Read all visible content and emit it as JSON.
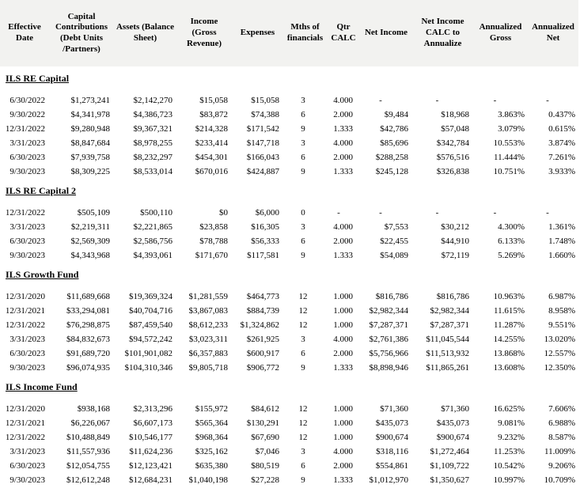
{
  "report": {
    "header_bg": "#f2f2f0",
    "text_color": "#000000",
    "columns": [
      "Effective Date",
      "Capital Contributions (Debt Units /Partners)",
      "Assets (Balance Sheet)",
      "Income (Gross Revenue)",
      "Expenses",
      "Mths of financials",
      "Qtr CALC",
      "Net Income",
      "Net Income CALC to Annualize",
      "Annualized Gross",
      "Annualized Net"
    ],
    "sections": [
      {
        "title": "ILS RE Capital",
        "rows": [
          [
            "6/30/2022",
            "$1,273,241",
            "$2,142,270",
            "$15,058",
            "$15,058",
            "3",
            "4.000",
            "-",
            "-",
            "-",
            "-"
          ],
          [
            "9/30/2022",
            "$4,341,978",
            "$4,386,723",
            "$83,872",
            "$74,388",
            "6",
            "2.000",
            "$9,484",
            "$18,968",
            "3.863%",
            "0.437%"
          ],
          [
            "12/31/2022",
            "$9,280,948",
            "$9,367,321",
            "$214,328",
            "$171,542",
            "9",
            "1.333",
            "$42,786",
            "$57,048",
            "3.079%",
            "0.615%"
          ],
          [
            "3/31/2023",
            "$8,847,684",
            "$8,978,255",
            "$233,414",
            "$147,718",
            "3",
            "4.000",
            "$85,696",
            "$342,784",
            "10.553%",
            "3.874%"
          ],
          [
            "6/30/2023",
            "$7,939,758",
            "$8,232,297",
            "$454,301",
            "$166,043",
            "6",
            "2.000",
            "$288,258",
            "$576,516",
            "11.444%",
            "7.261%"
          ],
          [
            "9/30/2023",
            "$8,309,225",
            "$8,533,014",
            "$670,016",
            "$424,887",
            "9",
            "1.333",
            "$245,128",
            "$326,838",
            "10.751%",
            "3.933%"
          ]
        ]
      },
      {
        "title": "ILS RE Capital 2",
        "rows": [
          [
            "12/31/2022",
            "$505,109",
            "$500,110",
            "$0",
            "$6,000",
            "0",
            "-",
            "-",
            "-",
            "-",
            "-"
          ],
          [
            "3/31/2023",
            "$2,219,311",
            "$2,221,865",
            "$23,858",
            "$16,305",
            "3",
            "4.000",
            "$7,553",
            "$30,212",
            "4.300%",
            "1.361%"
          ],
          [
            "6/30/2023",
            "$2,569,309",
            "$2,586,756",
            "$78,788",
            "$56,333",
            "6",
            "2.000",
            "$22,455",
            "$44,910",
            "6.133%",
            "1.748%"
          ],
          [
            "9/30/2023",
            "$4,343,968",
            "$4,393,061",
            "$171,670",
            "$117,581",
            "9",
            "1.333",
            "$54,089",
            "$72,119",
            "5.269%",
            "1.660%"
          ]
        ]
      },
      {
        "title": "ILS Growth Fund",
        "rows": [
          [
            "12/31/2020",
            "$11,689,668",
            "$19,369,324",
            "$1,281,559",
            "$464,773",
            "12",
            "1.000",
            "$816,786",
            "$816,786",
            "10.963%",
            "6.987%"
          ],
          [
            "12/31/2021",
            "$33,294,081",
            "$40,704,716",
            "$3,867,083",
            "$884,739",
            "12",
            "1.000",
            "$2,982,344",
            "$2,982,344",
            "11.615%",
            "8.958%"
          ],
          [
            "12/31/2022",
            "$76,298,875",
            "$87,459,540",
            "$8,612,233",
            "$1,324,862",
            "12",
            "1.000",
            "$7,287,371",
            "$7,287,371",
            "11.287%",
            "9.551%"
          ],
          [
            "3/31/2023",
            "$84,832,673",
            "$94,572,242",
            "$3,023,311",
            "$261,925",
            "3",
            "4.000",
            "$2,761,386",
            "$11,045,544",
            "14.255%",
            "13.020%"
          ],
          [
            "6/30/2023",
            "$91,689,720",
            "$101,901,082",
            "$6,357,883",
            "$600,917",
            "6",
            "2.000",
            "$5,756,966",
            "$11,513,932",
            "13.868%",
            "12.557%"
          ],
          [
            "9/30/2023",
            "$96,074,935",
            "$104,310,346",
            "$9,805,718",
            "$906,772",
            "9",
            "1.333",
            "$8,898,946",
            "$11,865,261",
            "13.608%",
            "12.350%"
          ]
        ]
      },
      {
        "title": "ILS Income Fund",
        "rows": [
          [
            "12/31/2020",
            "$938,168",
            "$2,313,296",
            "$155,972",
            "$84,612",
            "12",
            "1.000",
            "$71,360",
            "$71,360",
            "16.625%",
            "7.606%"
          ],
          [
            "12/31/2021",
            "$6,226,067",
            "$6,607,173",
            "$565,364",
            "$130,291",
            "12",
            "1.000",
            "$435,073",
            "$435,073",
            "9.081%",
            "6.988%"
          ],
          [
            "12/31/2022",
            "$10,488,849",
            "$10,546,177",
            "$968,364",
            "$67,690",
            "12",
            "1.000",
            "$900,674",
            "$900,674",
            "9.232%",
            "8.587%"
          ],
          [
            "3/31/2023",
            "$11,557,936",
            "$11,624,236",
            "$325,162",
            "$7,046",
            "3",
            "4.000",
            "$318,116",
            "$1,272,464",
            "11.253%",
            "11.009%"
          ],
          [
            "6/30/2023",
            "$12,054,755",
            "$12,123,421",
            "$635,380",
            "$80,519",
            "6",
            "2.000",
            "$554,861",
            "$1,109,722",
            "10.542%",
            "9.206%"
          ],
          [
            "9/30/2023",
            "$12,612,248",
            "$12,684,231",
            "$1,040,198",
            "$27,228",
            "9",
            "1.333",
            "$1,012,970",
            "$1,350,627",
            "10.997%",
            "10.709%"
          ]
        ]
      }
    ]
  }
}
